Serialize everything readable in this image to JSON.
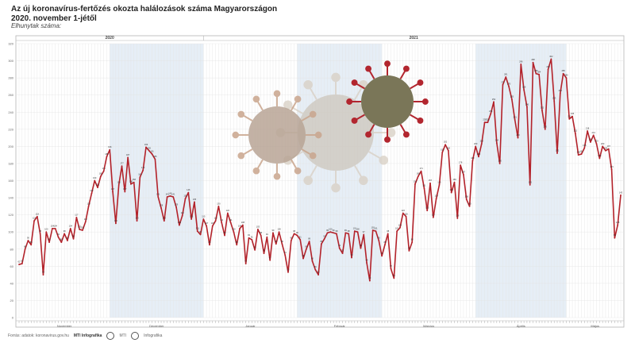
{
  "header": {
    "title_line1": "Az új koronavírus-fertőzés okozta halálozások száma Magyarországon",
    "title_line2": "2020. november 1-jétől",
    "subtitle": "Elhunytak száma:"
  },
  "colors": {
    "line": "#b3222a",
    "band": "#e6eef6",
    "grid": "#e3e3e3",
    "axis": "#b5b5b5"
  },
  "chart_data": {
    "type": "line",
    "title": "Az új koronavírus-fertőzés okozta halálozások száma Magyarországon",
    "subtitle": "2020. november 1-jétől",
    "ylabel": "Elhunytak száma:",
    "year_labels": [
      "2020",
      "2021"
    ],
    "month_labels": [
      "November",
      "December",
      "Január",
      "Február",
      "Március",
      "Április",
      "Május"
    ],
    "ylim": [
      0,
      320
    ],
    "series": [
      {
        "values": [
          62,
          63,
          80,
          90,
          85,
          113,
          118,
          98,
          50,
          100,
          88,
          104,
          104,
          94,
          88,
          98,
          90,
          104,
          92,
          117,
          103,
          102,
          112,
          130,
          145,
          160,
          152,
          165,
          171,
          188,
          196,
          147,
          110,
          155,
          177,
          147,
          187,
          156,
          158,
          113,
          164,
          172,
          199,
          195,
          191,
          185,
          141,
          128,
          113,
          141,
          142,
          141,
          129,
          108,
          119,
          139,
          146,
          115,
          135,
          101,
          97,
          115,
          107,
          85,
          107,
          113,
          130,
          111,
          96,
          122,
          111,
          100,
          85,
          104,
          108,
          63,
          93,
          91,
          79,
          103,
          96,
          75,
          94,
          67,
          99,
          86,
          100,
          86,
          73,
          53,
          90,
          98,
          96,
          91,
          69,
          80,
          89,
          66,
          56,
          50,
          86,
          92,
          99,
          100,
          99,
          98,
          81,
          75,
          99,
          98,
          70,
          101,
          100,
          81,
          97,
          64,
          43,
          102,
          101,
          90,
          72,
          85,
          98,
          57,
          46,
          101,
          105,
          122,
          118,
          78,
          88,
          156,
          165,
          171,
          151,
          125,
          157,
          117,
          139,
          155,
          193,
          202,
          195,
          146,
          158,
          116,
          178,
          167,
          138,
          130,
          183,
          200,
          188,
          203,
          228,
          228,
          238,
          252,
          204,
          180,
          272,
          281,
          270,
          255,
          231,
          210,
          296,
          266,
          246,
          155,
          298,
          285,
          284,
          242,
          220,
          290,
          302,
          253,
          192,
          262,
          285,
          280,
          232,
          235,
          215,
          190,
          191,
          198,
          218,
          205,
          213,
          203,
          186,
          200,
          195,
          197,
          173,
          93,
          108,
          143
        ]
      }
    ]
  },
  "footer": {
    "source": "Forrás: adatok: koronavirus.gov.hu",
    "brand": "MTI Infografika",
    "copyright": "MTI",
    "label": "Infografika"
  }
}
